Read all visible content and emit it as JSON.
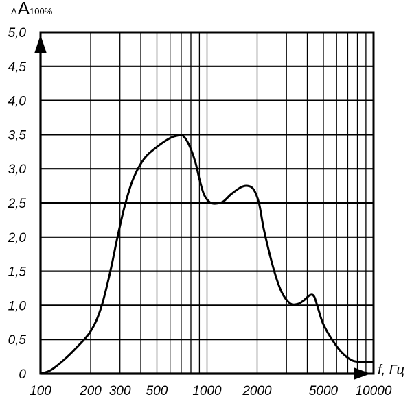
{
  "chart_data": {
    "type": "line",
    "x_scale": "log",
    "xlim": [
      100,
      10000
    ],
    "ylim": [
      0,
      5.0
    ],
    "grid": true,
    "ylabel": {
      "delta": "Δ",
      "main": "A",
      "sub": "100%"
    },
    "xlabel": "f, Гц",
    "y_ticks": [
      {
        "v": 0,
        "label": "0"
      },
      {
        "v": 0.5,
        "label": "0,5"
      },
      {
        "v": 1.0,
        "label": "1,0"
      },
      {
        "v": 1.5,
        "label": "1,5"
      },
      {
        "v": 2.0,
        "label": "2,0"
      },
      {
        "v": 2.5,
        "label": "2,5"
      },
      {
        "v": 3.0,
        "label": "3,0"
      },
      {
        "v": 3.5,
        "label": "3,5"
      },
      {
        "v": 4.0,
        "label": "4,0"
      },
      {
        "v": 4.5,
        "label": "4,5"
      },
      {
        "v": 5.0,
        "label": "5,0"
      }
    ],
    "x_ticks": [
      {
        "v": 100,
        "label": "100"
      },
      {
        "v": 200,
        "label": "200"
      },
      {
        "v": 300,
        "label": "300"
      },
      {
        "v": 500,
        "label": "500"
      },
      {
        "v": 1000,
        "label": "1000"
      },
      {
        "v": 2000,
        "label": "2000"
      },
      {
        "v": 5000,
        "label": "5000"
      },
      {
        "v": 10000,
        "label": "10000"
      }
    ],
    "x_gridlines": [
      200,
      300,
      400,
      500,
      600,
      700,
      800,
      900,
      1000,
      2000,
      3000,
      4000,
      5000,
      6000,
      7000,
      8000,
      9000
    ],
    "y_gridlines": [
      0.5,
      1.0,
      1.5,
      2.0,
      2.5,
      3.0,
      3.5,
      4.0,
      4.5,
      5.0
    ],
    "series": [
      {
        "points": [
          [
            100,
            0.0
          ],
          [
            115,
            0.05
          ],
          [
            135,
            0.18
          ],
          [
            160,
            0.35
          ],
          [
            200,
            0.62
          ],
          [
            230,
            0.95
          ],
          [
            260,
            1.45
          ],
          [
            290,
            2.0
          ],
          [
            320,
            2.45
          ],
          [
            360,
            2.85
          ],
          [
            420,
            3.15
          ],
          [
            500,
            3.32
          ],
          [
            600,
            3.45
          ],
          [
            680,
            3.49
          ],
          [
            720,
            3.48
          ],
          [
            780,
            3.35
          ],
          [
            850,
            3.1
          ],
          [
            900,
            2.85
          ],
          [
            960,
            2.62
          ],
          [
            1040,
            2.51
          ],
          [
            1130,
            2.49
          ],
          [
            1250,
            2.52
          ],
          [
            1400,
            2.63
          ],
          [
            1600,
            2.73
          ],
          [
            1750,
            2.75
          ],
          [
            1900,
            2.7
          ],
          [
            2050,
            2.5
          ],
          [
            2200,
            2.1
          ],
          [
            2500,
            1.55
          ],
          [
            2800,
            1.2
          ],
          [
            3150,
            1.03
          ],
          [
            3500,
            1.02
          ],
          [
            3800,
            1.07
          ],
          [
            4150,
            1.15
          ],
          [
            4400,
            1.13
          ],
          [
            4650,
            0.95
          ],
          [
            5000,
            0.72
          ],
          [
            5700,
            0.48
          ],
          [
            6500,
            0.3
          ],
          [
            7500,
            0.19
          ],
          [
            8800,
            0.17
          ],
          [
            9800,
            0.17
          ]
        ]
      }
    ]
  }
}
